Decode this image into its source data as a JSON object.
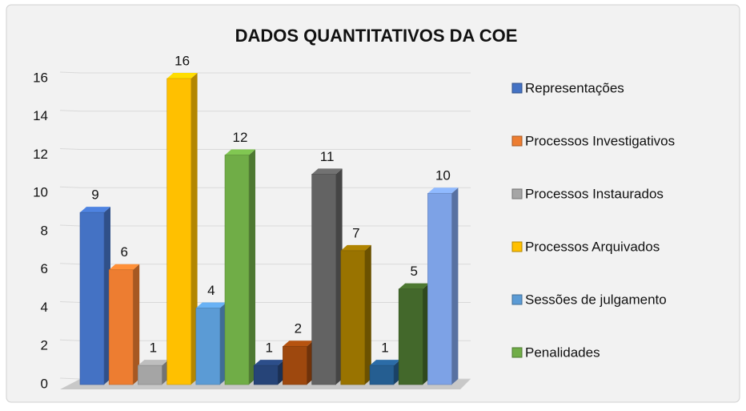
{
  "chart_data": {
    "type": "bar3d",
    "title": "DADOS QUANTITATIVOS DA COE",
    "categories": [
      null,
      null,
      null
    ],
    "series": [
      {
        "name": "Representações",
        "color": "#4472c4",
        "colors": [
          "#4472c4",
          "#264478",
          "#7da2e6"
        ],
        "values": [
          9,
          1,
          10
        ]
      },
      {
        "name": "Processos Investigativos",
        "color": "#ed7d31",
        "colors": [
          "#ed7d31",
          "#9e480e",
          null
        ],
        "values": [
          6,
          2,
          null
        ]
      },
      {
        "name": "Processos Instaurados",
        "color": "#a5a5a5",
        "colors": [
          "#a5a5a5",
          "#636363",
          null
        ],
        "values": [
          1,
          11,
          null
        ]
      },
      {
        "name": "Processos Arquivados",
        "color": "#ffc000",
        "colors": [
          "#ffc000",
          "#997300",
          null
        ],
        "values": [
          16,
          7,
          null
        ]
      },
      {
        "name": "Sessões de julgamento",
        "color": "#5b9bd5",
        "colors": [
          "#5b9bd5",
          "#255e91",
          null
        ],
        "values": [
          4,
          1,
          null
        ]
      },
      {
        "name": "Penalidades",
        "color": "#70ad47",
        "colors": [
          "#70ad47",
          "#43682b",
          null
        ],
        "values": [
          12,
          5,
          null
        ]
      }
    ],
    "ylim": [
      0,
      16
    ],
    "yticks": [
      0,
      2,
      4,
      6,
      8,
      10,
      12,
      14,
      16
    ],
    "grid": true,
    "legend": "right"
  }
}
